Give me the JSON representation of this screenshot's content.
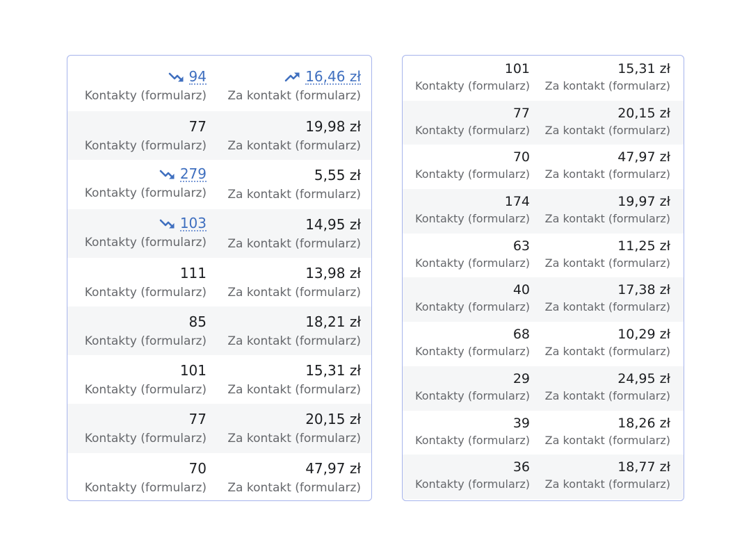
{
  "left_panel": {
    "rows": [
      {
        "contacts": "94",
        "contacts_trend": "down",
        "cost": "16,46 zł",
        "cost_trend": "up",
        "contacts_label": "Kontakty (formularz)",
        "cost_label": "Za kontakt (formularz)"
      },
      {
        "contacts": "77",
        "cost": "19,98 zł",
        "contacts_label": "Kontakty (formularz)",
        "cost_label": "Za kontakt (formularz)"
      },
      {
        "contacts": "279",
        "contacts_trend": "down",
        "cost": "5,55 zł",
        "contacts_label": "Kontakty (formularz)",
        "cost_label": "Za kontakt (formularz)"
      },
      {
        "contacts": "103",
        "contacts_trend": "down",
        "cost": "14,95 zł",
        "contacts_label": "Kontakty (formularz)",
        "cost_label": "Za kontakt (formularz)"
      },
      {
        "contacts": "111",
        "cost": "13,98 zł",
        "contacts_label": "Kontakty (formularz)",
        "cost_label": "Za kontakt (formularz)"
      },
      {
        "contacts": "85",
        "cost": "18,21 zł",
        "contacts_label": "Kontakty (formularz)",
        "cost_label": "Za kontakt (formularz)"
      },
      {
        "contacts": "101",
        "cost": "15,31 zł",
        "contacts_label": "Kontakty (formularz)",
        "cost_label": "Za kontakt (formularz)"
      },
      {
        "contacts": "77",
        "cost": "20,15 zł",
        "contacts_label": "Kontakty (formularz)",
        "cost_label": "Za kontakt (formularz)"
      },
      {
        "contacts": "70",
        "cost": "47,97 zł",
        "contacts_label": "Kontakty (formularz)",
        "cost_label": "Za kontakt (formularz)"
      }
    ]
  },
  "right_panel": {
    "rows": [
      {
        "contacts": "101",
        "cost": "15,31 zł",
        "contacts_label": "Kontakty (formularz)",
        "cost_label": "Za kontakt (formularz)"
      },
      {
        "contacts": "77",
        "cost": "20,15 zł",
        "contacts_label": "Kontakty (formularz)",
        "cost_label": "Za kontakt (formularz)"
      },
      {
        "contacts": "70",
        "cost": "47,97 zł",
        "contacts_label": "Kontakty (formularz)",
        "cost_label": "Za kontakt (formularz)"
      },
      {
        "contacts": "174",
        "cost": "19,97 zł",
        "contacts_label": "Kontakty (formularz)",
        "cost_label": "Za kontakt (formularz)"
      },
      {
        "contacts": "63",
        "cost": "11,25 zł",
        "contacts_label": "Kontakty (formularz)",
        "cost_label": "Za kontakt (formularz)"
      },
      {
        "contacts": "40",
        "cost": "17,38 zł",
        "contacts_label": "Kontakty (formularz)",
        "cost_label": "Za kontakt (formularz)"
      },
      {
        "contacts": "68",
        "cost": "10,29 zł",
        "contacts_label": "Kontakty (formularz)",
        "cost_label": "Za kontakt (formularz)"
      },
      {
        "contacts": "29",
        "cost": "24,95 zł",
        "contacts_label": "Kontakty (formularz)",
        "cost_label": "Za kontakt (formularz)"
      },
      {
        "contacts": "39",
        "cost": "18,26 zł",
        "contacts_label": "Kontakty (formularz)",
        "cost_label": "Za kontakt (formularz)"
      },
      {
        "contacts": "36",
        "cost": "18,77 zł",
        "contacts_label": "Kontakty (formularz)",
        "cost_label": "Za kontakt (formularz)"
      }
    ]
  },
  "colors": {
    "panel_border": "#a6b4ec",
    "trend_link": "#3f6fbf",
    "row_stripe": "#f5f6f7",
    "label_gray": "#65676b"
  },
  "icons": {
    "trend_down": "trend-down-icon",
    "trend_up": "trend-up-icon"
  }
}
